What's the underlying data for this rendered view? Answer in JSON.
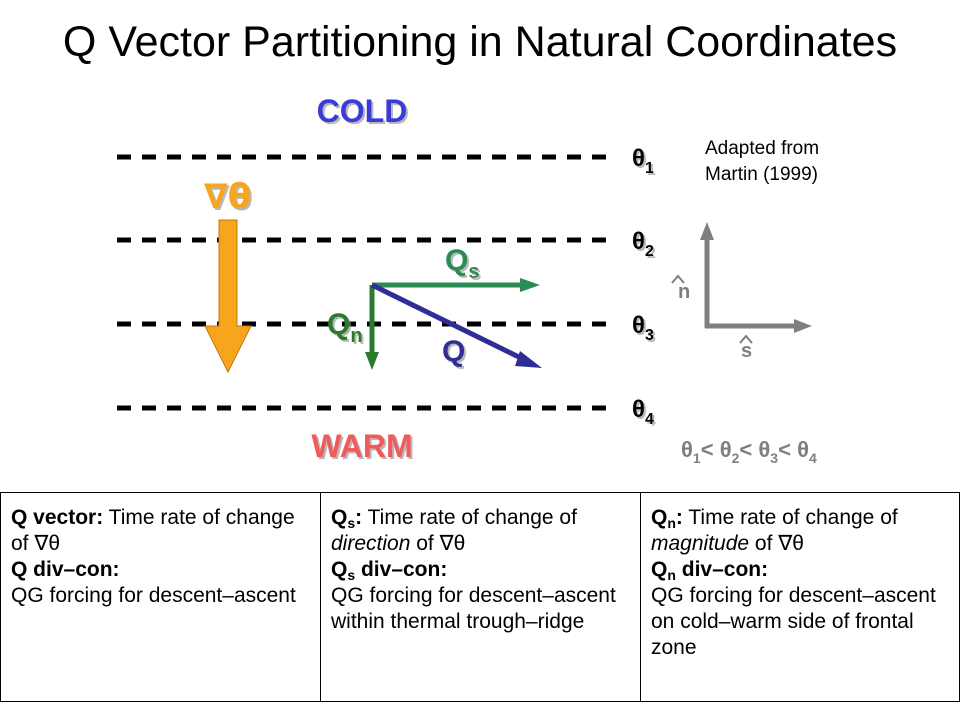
{
  "title": "Q Vector Partitioning in Natural Coordinates",
  "labels": {
    "cold": "COLD",
    "warm": "WARM",
    "grad_theta": "∇θ",
    "theta_base": "θ",
    "theta_subs": [
      "1",
      "2",
      "3",
      "4"
    ],
    "qs_base": "Q",
    "qs_sub": "s",
    "qn_base": "Q",
    "qn_sub": "n",
    "q": "Q",
    "n_hat": "n",
    "s_hat": "s",
    "inequality_sep": "<"
  },
  "credit": [
    "Adapted from",
    "Martin (1999)"
  ],
  "colors": {
    "cold": "#3a3ad8",
    "warm": "#f05a5a",
    "grad_theta": "#f6a51c",
    "qs": "#2a8c52",
    "q": "#2e2e96",
    "qn": "#2b7a2e",
    "axes": "#7f7f7f",
    "dash": "#000000"
  },
  "boxes": [
    {
      "head": "Q",
      "head_sub": "",
      "head_rest": " vector:",
      "desc": "Time rate of change of ∇θ",
      "desc_pre": "Time rate of change of ",
      "desc_em": "",
      "desc_post": "∇θ",
      "divcon_head": "Q",
      "divcon_sub": "",
      "divcon_rest": " div–con:",
      "divcon_text": "QG forcing for descent–ascent"
    },
    {
      "head": "Q",
      "head_sub": "s",
      "head_rest": ":",
      "desc_pre": "Time rate of change of ",
      "desc_em": "direction",
      "desc_post": " of ∇θ",
      "divcon_head": "Q",
      "divcon_sub": "s",
      "divcon_rest": " div–con:",
      "divcon_text": "QG forcing for descent–ascent within thermal trough–ridge"
    },
    {
      "head": "Q",
      "head_sub": "n",
      "head_rest": ":",
      "desc_pre": "Time rate of change of ",
      "desc_em": "magnitude",
      "desc_post": " of ∇θ",
      "divcon_head": "Q",
      "divcon_sub": "n",
      "divcon_rest": " div–con:",
      "divcon_text": "QG forcing for descent–ascent on cold–warm side of frontal zone"
    }
  ]
}
